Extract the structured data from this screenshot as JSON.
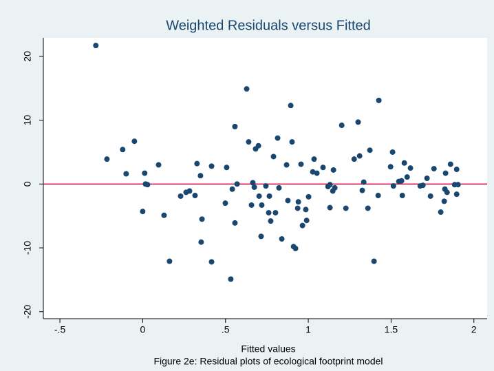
{
  "chart_data": {
    "type": "scatter",
    "title": "Weighted Residuals versus Fitted",
    "xlabel": "Fitted values",
    "caption": "Figure 2e: Residual plots of ecological footprint model",
    "color": "#1a476f",
    "reference_line": {
      "value": 0,
      "color": "#c10534"
    },
    "xlim": [
      -0.6,
      2.08
    ],
    "ylim": [
      -21.1,
      22.9
    ],
    "xticks": [
      {
        "value": -0.5,
        "label": "-.5"
      },
      0,
      {
        "value": 0.5,
        "label": ".5"
      },
      1,
      1.5,
      2
    ],
    "yticks": [
      -20,
      -10,
      0,
      10,
      20
    ],
    "x": [
      -0.283,
      -0.216,
      -0.121,
      -0.1,
      -0.05,
      0.0,
      0.012,
      0.017,
      0.029,
      0.096,
      0.129,
      0.162,
      0.229,
      0.262,
      0.283,
      0.316,
      0.328,
      0.349,
      0.353,
      0.358,
      0.416,
      0.416,
      0.499,
      0.507,
      0.532,
      0.541,
      0.557,
      0.557,
      0.57,
      0.628,
      0.64,
      0.657,
      0.665,
      0.674,
      0.682,
      0.699,
      0.703,
      0.715,
      0.719,
      0.744,
      0.761,
      0.765,
      0.773,
      0.79,
      0.802,
      0.815,
      0.823,
      0.84,
      0.869,
      0.877,
      0.894,
      0.902,
      0.911,
      0.923,
      0.936,
      0.94,
      0.956,
      0.965,
      0.985,
      0.99,
      1.002,
      1.027,
      1.035,
      1.052,
      1.089,
      1.119,
      1.131,
      1.131,
      1.148,
      1.152,
      1.16,
      1.202,
      1.227,
      1.277,
      1.301,
      1.31,
      1.326,
      1.335,
      1.36,
      1.372,
      1.397,
      1.422,
      1.426,
      1.497,
      1.509,
      1.514,
      1.547,
      1.563,
      1.568,
      1.58,
      1.597,
      1.617,
      1.676,
      1.692,
      1.717,
      1.738,
      1.759,
      1.8,
      1.821,
      1.825,
      1.829,
      1.838,
      1.859,
      1.884,
      1.896,
      1.896,
      1.904
    ],
    "values": [
      21.7,
      3.9,
      5.4,
      1.6,
      6.7,
      -4.3,
      1.7,
      0,
      -0.1,
      3.0,
      -4.9,
      -12.1,
      -1.9,
      -1.3,
      -1.1,
      -1.8,
      3.2,
      1.3,
      -9.1,
      -5.5,
      2.8,
      -12.2,
      -3.0,
      2.6,
      -14.9,
      -0.8,
      9.0,
      -6.1,
      0,
      14.9,
      6.6,
      -3.3,
      0.2,
      -0.5,
      5.5,
      6.0,
      -1.9,
      -8.2,
      -3.3,
      -0.3,
      -4.5,
      -1.9,
      -5.8,
      4.3,
      -4.5,
      7.2,
      -0.6,
      -8.6,
      3.0,
      -2.6,
      12.3,
      6.6,
      -9.8,
      -10.1,
      -3.8,
      -2.8,
      3.1,
      -6.5,
      -4.0,
      -5.7,
      -2.0,
      1.9,
      3.9,
      1.7,
      2.6,
      -0.4,
      -0.1,
      -3.7,
      -1.1,
      2.2,
      -0.6,
      9.2,
      -3.8,
      3.9,
      9.7,
      4.4,
      -1.0,
      0.3,
      -3.8,
      5.3,
      -12.1,
      -1.8,
      13.1,
      2.7,
      5.0,
      -0.3,
      0.4,
      0.5,
      -1.8,
      3.3,
      1.1,
      2.5,
      -0.3,
      -0.2,
      0.9,
      -1.9,
      2.4,
      -4.4,
      -2.7,
      -0.8,
      1.7,
      -1.3,
      3.1,
      -0.1,
      2.3,
      -1.6,
      -0.1
    ]
  }
}
